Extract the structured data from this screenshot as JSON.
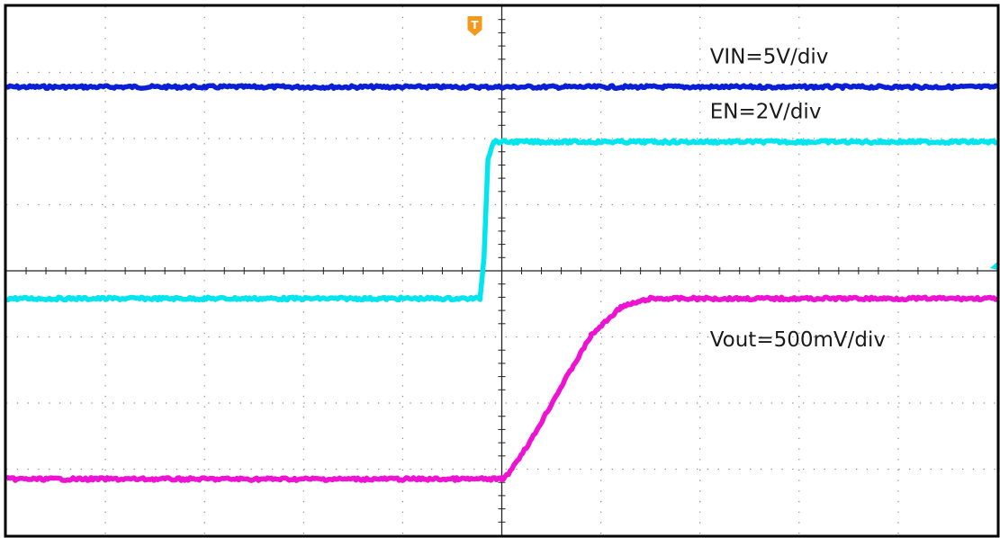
{
  "chart_data": {
    "type": "line",
    "title": "",
    "xlabel": "",
    "ylabel": "",
    "x_divisions": 10,
    "y_divisions": 8,
    "grid": true,
    "trigger_marker": "T",
    "series": [
      {
        "name": "VIN=5V/div",
        "color": "#0a1fd6",
        "points": [
          [
            0,
            1.22
          ],
          [
            10,
            1.22
          ]
        ]
      },
      {
        "name": "EN=2V/div",
        "color": "#00e5ee",
        "points": [
          [
            0,
            4.42
          ],
          [
            4.78,
            4.42
          ],
          [
            4.82,
            3.8
          ],
          [
            4.86,
            2.3
          ],
          [
            4.92,
            2.05
          ],
          [
            10,
            2.05
          ]
        ]
      },
      {
        "name": "Vout=500mV/div",
        "color": "#ee12d2",
        "points": [
          [
            0,
            7.15
          ],
          [
            5.0,
            7.15
          ],
          [
            5.05,
            7.1
          ],
          [
            5.3,
            6.55
          ],
          [
            5.6,
            5.75
          ],
          [
            5.9,
            4.98
          ],
          [
            6.2,
            4.55
          ],
          [
            6.5,
            4.42
          ],
          [
            10,
            4.42
          ]
        ]
      }
    ]
  },
  "colors": {
    "background": "#ffffff",
    "frame": "#000000",
    "grid_dots": "#8a8a8a",
    "trigger": "#f39a1d"
  }
}
